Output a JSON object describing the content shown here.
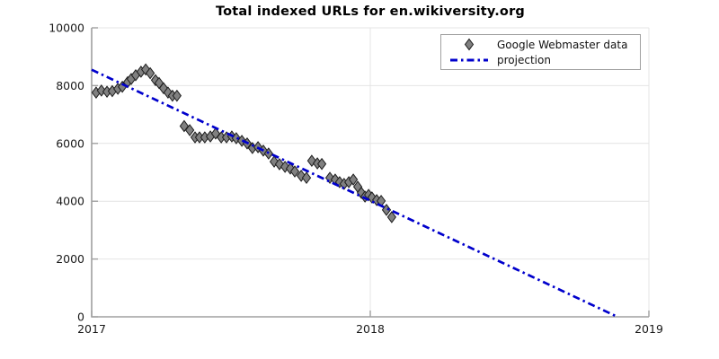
{
  "window": {
    "background_color": "#ffffff"
  },
  "chart_data": {
    "type": "scatter",
    "title": "Total indexed URLs for en.wikiversity.org",
    "xlabel": "",
    "ylabel": "",
    "xlim": [
      2017,
      2019
    ],
    "ylim": [
      0,
      10000
    ],
    "x_ticks": [
      2017,
      2018,
      2019
    ],
    "y_ticks": [
      0,
      2000,
      4000,
      6000,
      8000,
      10000
    ],
    "grid": true,
    "legend_position": "top-right",
    "colors": {
      "marker_fill": "#808080",
      "marker_edge": "#1c1c1c",
      "projection_line": "#0000cc",
      "axis": "#a0a0a0",
      "gridline": "#e4e4e4",
      "tick_text": "#1a1a1a",
      "legend_border": "#a0a0a0"
    },
    "series": [
      {
        "name": "Google Webmaster data",
        "kind": "scatter",
        "marker": "diamond",
        "points": [
          [
            2017.016,
            7760
          ],
          [
            2017.035,
            7830
          ],
          [
            2017.055,
            7790
          ],
          [
            2017.074,
            7810
          ],
          [
            2017.094,
            7890
          ],
          [
            2017.11,
            7960
          ],
          [
            2017.129,
            8120
          ],
          [
            2017.142,
            8230
          ],
          [
            2017.158,
            8360
          ],
          [
            2017.177,
            8480
          ],
          [
            2017.194,
            8560
          ],
          [
            2017.21,
            8430
          ],
          [
            2017.229,
            8190
          ],
          [
            2017.242,
            8090
          ],
          [
            2017.258,
            7910
          ],
          [
            2017.274,
            7760
          ],
          [
            2017.29,
            7650
          ],
          [
            2017.306,
            7650
          ],
          [
            2017.332,
            6600
          ],
          [
            2017.352,
            6460
          ],
          [
            2017.371,
            6210
          ],
          [
            2017.387,
            6210
          ],
          [
            2017.406,
            6210
          ],
          [
            2017.426,
            6240
          ],
          [
            2017.445,
            6340
          ],
          [
            2017.465,
            6210
          ],
          [
            2017.484,
            6210
          ],
          [
            2017.503,
            6240
          ],
          [
            2017.519,
            6180
          ],
          [
            2017.539,
            6090
          ],
          [
            2017.558,
            6000
          ],
          [
            2017.577,
            5840
          ],
          [
            2017.597,
            5870
          ],
          [
            2017.616,
            5750
          ],
          [
            2017.635,
            5650
          ],
          [
            2017.655,
            5370
          ],
          [
            2017.674,
            5280
          ],
          [
            2017.694,
            5190
          ],
          [
            2017.713,
            5130
          ],
          [
            2017.729,
            5030
          ],
          [
            2017.752,
            4880
          ],
          [
            2017.771,
            4810
          ],
          [
            2017.79,
            5400
          ],
          [
            2017.81,
            5310
          ],
          [
            2017.826,
            5290
          ],
          [
            2017.855,
            4810
          ],
          [
            2017.874,
            4750
          ],
          [
            2017.89,
            4660
          ],
          [
            2017.906,
            4600
          ],
          [
            2017.923,
            4660
          ],
          [
            2017.939,
            4750
          ],
          [
            2017.955,
            4500
          ],
          [
            2017.968,
            4290
          ],
          [
            2017.981,
            4160
          ],
          [
            2017.994,
            4220
          ],
          [
            2018.006,
            4130
          ],
          [
            2018.023,
            4040
          ],
          [
            2018.039,
            4010
          ],
          [
            2018.058,
            3700
          ],
          [
            2018.077,
            3450
          ]
        ]
      },
      {
        "name": "projection",
        "kind": "line",
        "style": "dash-dot",
        "points": [
          [
            2017.0,
            8550
          ],
          [
            2018.887,
            0
          ]
        ]
      }
    ]
  }
}
